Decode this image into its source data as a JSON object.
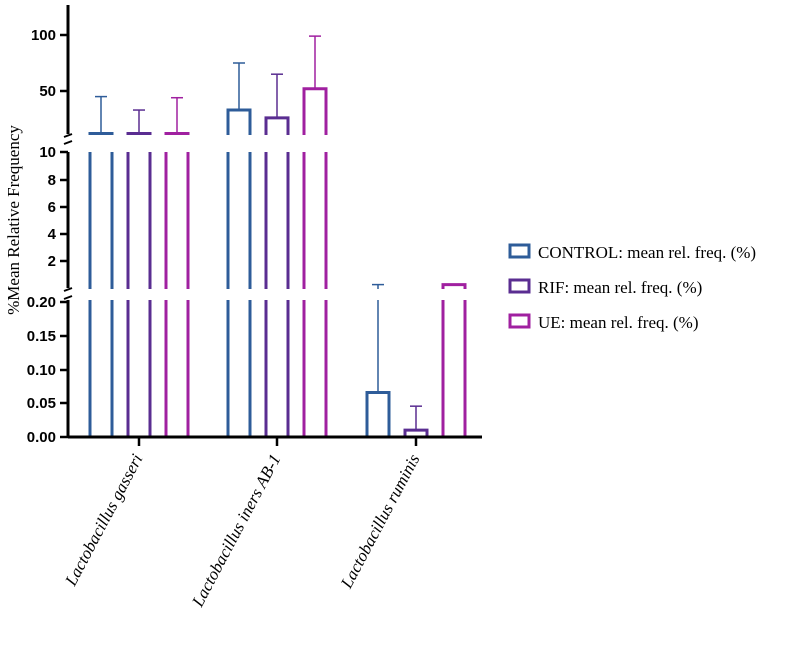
{
  "chart_data": {
    "type": "bar",
    "title": "",
    "xlabel": "",
    "ylabel": "%Mean Relative Frequency",
    "categories": [
      "Lactobacillus gasseri",
      "Lactobacillus iners AB-1",
      "Lactobacillus ruminis"
    ],
    "series": [
      {
        "name": "CONTROL: mean rel. freq. (%)",
        "color": "#2e5c99",
        "values": [
          12,
          33,
          0.065
        ],
        "errors_upper": [
          45,
          75,
          0.25
        ]
      },
      {
        "name": "RIF: mean rel. freq. (%)",
        "color": "#5a2d91",
        "values": [
          12,
          26,
          0.01
        ],
        "errors_upper": [
          33,
          65,
          0.045
        ]
      },
      {
        "name": "UE: mean rel. freq. (%)",
        "color": "#a020a0",
        "values": [
          12,
          52,
          0.25
        ],
        "errors_upper": [
          44,
          99,
          0.255
        ]
      }
    ],
    "axis_segments": [
      {
        "range": [
          0,
          0.2
        ],
        "ticks": [
          "0.00",
          "0.05",
          "0.10",
          "0.15",
          "0.20"
        ]
      },
      {
        "range": [
          0,
          10
        ],
        "ticks": [
          "2",
          "4",
          "6",
          "8",
          "10"
        ]
      },
      {
        "range": [
          12,
          130
        ],
        "ticks": [
          "50",
          "100"
        ]
      }
    ],
    "legend_position": "right"
  }
}
